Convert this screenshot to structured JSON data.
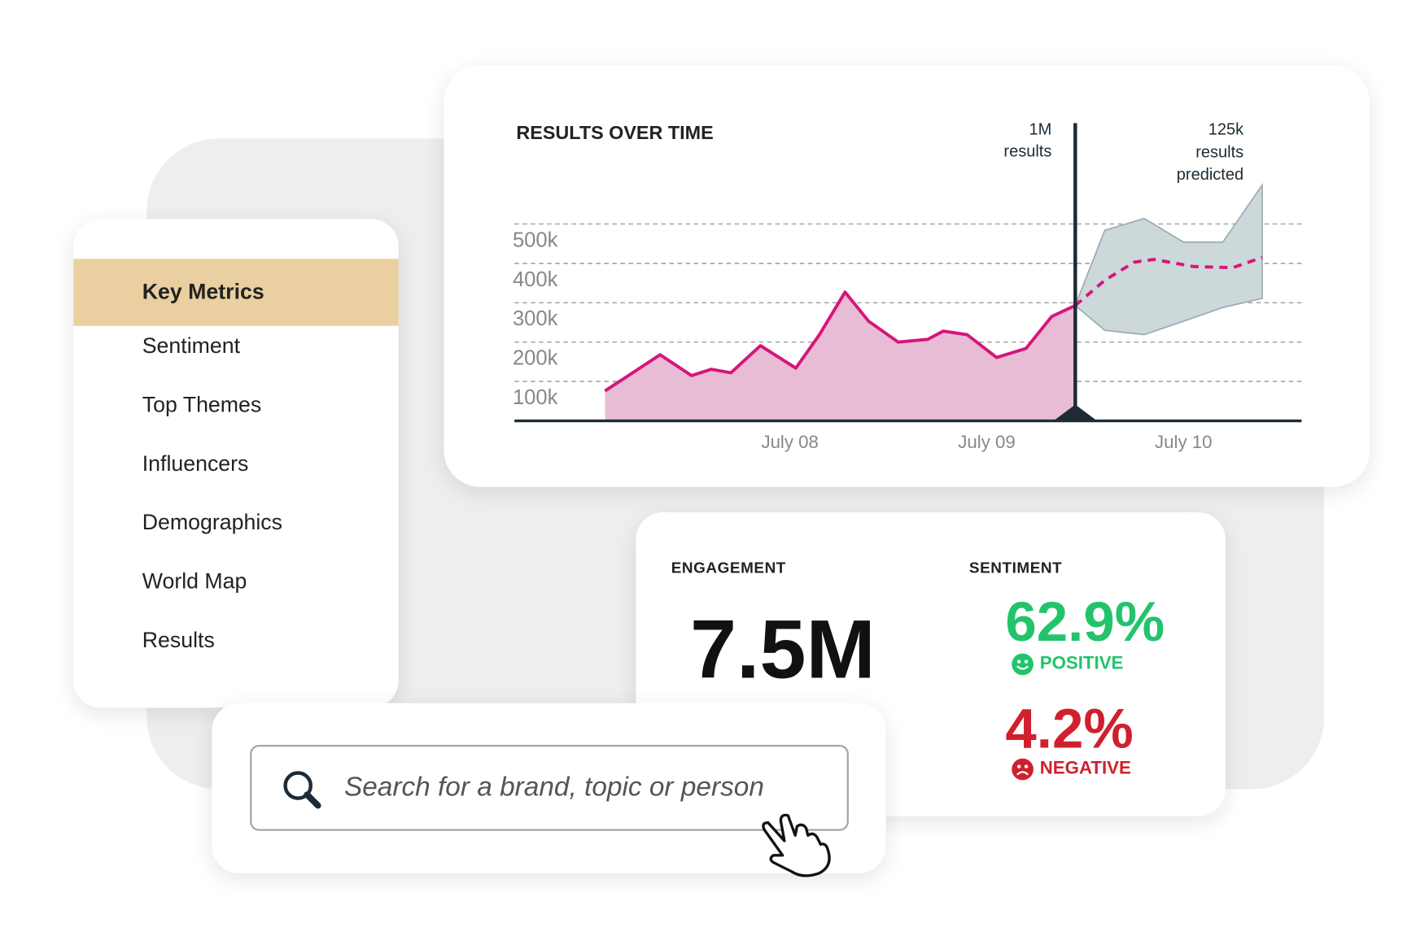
{
  "nav": {
    "items": [
      "Key Metrics",
      "Sentiment",
      "Top Themes",
      "Influencers",
      "Demographics",
      "World Map",
      "Results"
    ],
    "active": 0
  },
  "chart_data": {
    "type": "line",
    "title": "RESULTS OVER TIME",
    "xlim": [
      6.6,
      10.6
    ],
    "xticks": [
      {
        "value": 8,
        "label": "July 08"
      },
      {
        "value": 9,
        "label": "July 09"
      },
      {
        "value": 10,
        "label": "July 10"
      }
    ],
    "ylim": [
      0,
      600000
    ],
    "yticks": [
      {
        "value": 100000,
        "label": "100k"
      },
      {
        "value": 200000,
        "label": "200k"
      },
      {
        "value": 300000,
        "label": "300k"
      },
      {
        "value": 400000,
        "label": "400k"
      },
      {
        "value": 500000,
        "label": "500k"
      }
    ],
    "grid": true,
    "series": [
      {
        "color": "#d6157a",
        "fill": "#e8bcd4",
        "x": [
          7.06,
          7.34,
          7.5,
          7.6,
          7.7,
          7.85,
          8.03,
          8.15,
          8.28,
          8.4,
          8.55,
          8.7,
          8.78,
          8.9,
          9.05,
          9.2,
          9.33,
          9.45
        ],
        "values": [
          76000,
          168000,
          115000,
          131000,
          122000,
          191000,
          134000,
          219000,
          327000,
          253000,
          200000,
          207000,
          228000,
          219000,
          161000,
          184000,
          265000,
          293000
        ]
      },
      {
        "color": "#d6157a",
        "dashed": true,
        "x": [
          9.45,
          9.6,
          9.75,
          9.85,
          10.05,
          10.25,
          10.4
        ],
        "values": [
          293000,
          357000,
          403000,
          410000,
          392000,
          389000,
          415000
        ]
      }
    ],
    "band": {
      "color": "#cdd8db",
      "x": [
        9.45,
        9.6,
        9.8,
        10.0,
        10.2,
        10.4
      ],
      "upper": [
        293000,
        484000,
        514000,
        454000,
        454000,
        599000
      ],
      "lower": [
        293000,
        230000,
        219000,
        253000,
        288000,
        311000
      ]
    },
    "marker": {
      "x": 9.45,
      "label": [
        "1M",
        "results"
      ]
    },
    "annotation": [
      "125k",
      "results",
      "predicted"
    ]
  },
  "metrics": {
    "engagement": {
      "label": "ENGAGEMENT",
      "value": "7.5M"
    },
    "sentiment": {
      "label": "SENTIMENT",
      "positive": {
        "value": "62.9%",
        "label": "POSITIVE"
      },
      "negative": {
        "value": "4.2%",
        "label": "NEGATIVE"
      }
    }
  },
  "search": {
    "placeholder": "Search for a brand, topic or person"
  }
}
